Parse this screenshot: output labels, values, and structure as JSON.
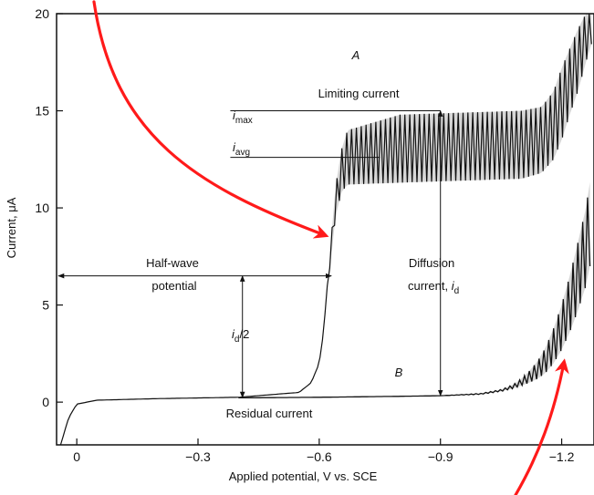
{
  "chart_data": {
    "type": "line",
    "xlabel": "Applied potential, V vs. SCE",
    "ylabel": "Current, μA",
    "xlim": [
      0.05,
      -1.28
    ],
    "ylim": [
      -2.2,
      20
    ],
    "x_ticks": [
      0,
      -0.3,
      -0.6,
      -0.9,
      -1.2
    ],
    "x_tick_labels": [
      "0",
      "−0.3",
      "−0.6",
      "−0.9",
      "−1.2"
    ],
    "y_ticks": [
      0,
      5,
      10,
      15,
      20
    ],
    "y_tick_labels": [
      "0",
      "5",
      "10",
      "15",
      "20"
    ],
    "grid": false,
    "series": [
      {
        "name": "A",
        "x": [
          0.04,
          0.02,
          0.0,
          -0.05,
          -0.2,
          -0.4,
          -0.55,
          -0.58,
          -0.6,
          -0.61,
          -0.62,
          -0.63,
          -0.64,
          -0.655,
          -0.67,
          -0.8,
          -0.95,
          -1.1,
          -1.15,
          -1.18,
          -1.2,
          -1.22,
          -1.24,
          -1.26,
          -1.275
        ],
        "y_max": [
          -2.2,
          -0.8,
          -0.1,
          0.1,
          0.18,
          0.25,
          0.5,
          1.0,
          2.0,
          3.5,
          6.0,
          8.5,
          11.0,
          13.0,
          14.0,
          14.8,
          14.9,
          15.0,
          15.2,
          16.0,
          17.2,
          18.2,
          19.2,
          20.0,
          20.0
        ],
        "y_avg": [
          -2.2,
          -0.8,
          -0.1,
          0.1,
          0.18,
          0.25,
          0.5,
          1.0,
          2.0,
          3.5,
          6.0,
          8.0,
          10.0,
          11.5,
          12.3,
          12.5,
          12.6,
          12.7,
          13.0,
          13.8,
          15.2,
          16.5,
          17.8,
          19.0,
          19.8
        ],
        "y_min": [
          -2.2,
          -0.8,
          -0.1,
          0.1,
          0.18,
          0.25,
          0.5,
          1.0,
          2.0,
          3.5,
          6.0,
          7.5,
          9.5,
          10.8,
          11.2,
          11.3,
          11.4,
          11.5,
          11.8,
          12.5,
          13.5,
          14.8,
          16.0,
          17.5,
          18.5
        ]
      },
      {
        "name": "B",
        "x": [
          -0.4,
          -0.6,
          -0.8,
          -0.9,
          -1.0,
          -1.05,
          -1.08,
          -1.1,
          -1.12,
          -1.14,
          -1.16,
          -1.18,
          -1.2,
          -1.22,
          -1.24,
          -1.26,
          -1.275
        ],
        "y_max": [
          0.22,
          0.25,
          0.3,
          0.33,
          0.45,
          0.65,
          0.9,
          1.2,
          1.6,
          2.1,
          2.8,
          3.8,
          5.0,
          6.5,
          8.2,
          10.0,
          12.0
        ],
        "y_min": [
          0.22,
          0.25,
          0.3,
          0.33,
          0.4,
          0.55,
          0.7,
          0.85,
          1.0,
          1.2,
          1.5,
          2.0,
          2.7,
          3.6,
          4.7,
          6.0,
          7.5
        ]
      }
    ],
    "annotations": {
      "curve_a_label": "A",
      "curve_b_label": "B",
      "limiting_current": "Limiting current",
      "i_max": "i",
      "i_max_sub": "max",
      "i_avg": "i",
      "i_avg_sub": "avg",
      "half_wave_line1": "Half-wave",
      "half_wave_line2": "potential",
      "id_half": "i",
      "id_half_sub": "d",
      "id_half_rest": "/2",
      "diffusion_line1": "Diffusion",
      "diffusion_line2": "current, ",
      "diffusion_i": "i",
      "diffusion_sub": "d",
      "residual_current": "Residual current"
    },
    "markers": {
      "half_wave_potential": -0.63,
      "half_id": 6.5,
      "i_max_value": 15.0,
      "i_avg_value": 12.6,
      "diffusion_x": -0.9,
      "diffusion_top": 15.0,
      "diffusion_bottom": 0.33,
      "half_id_x": -0.41,
      "half_id_bottom": 0.24,
      "i_max_leader_x": [
        -0.38,
        -0.9
      ],
      "i_avg_leader_x": [
        -0.38,
        -0.75
      ],
      "half_wave_arrow_x": [
        0.05,
        -0.63
      ]
    },
    "overlay_arrows": [
      {
        "name": "red-arrow-half-wave",
        "color": "#ff1a1a"
      },
      {
        "name": "red-arrow-decomposition",
        "color": "#ff1a1a"
      }
    ]
  }
}
